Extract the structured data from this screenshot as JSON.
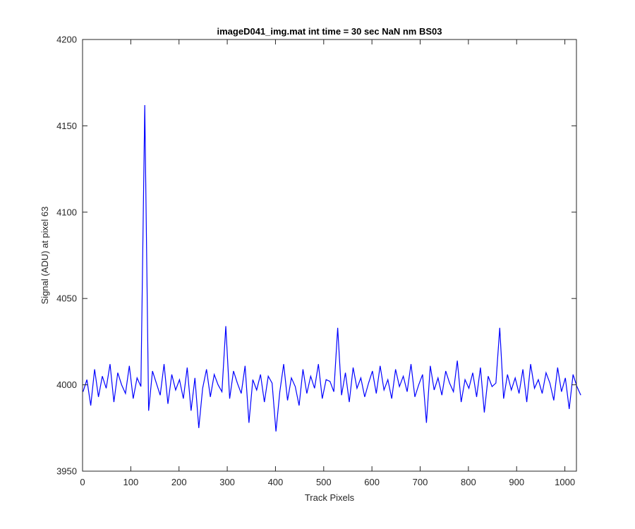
{
  "chart_data": {
    "type": "line",
    "title": "imageD041_img.mat int time = 30 sec  NaN nm BS03",
    "xlabel": "Track Pixels",
    "ylabel": "Signal (ADU) at pixel 63",
    "xlim": [
      0,
      1024
    ],
    "ylim": [
      3950,
      4200
    ],
    "xticks": [
      0,
      100,
      200,
      300,
      400,
      500,
      600,
      700,
      800,
      900,
      1000
    ],
    "yticks": [
      3950,
      4000,
      4050,
      4100,
      4150,
      4200
    ],
    "grid": false,
    "line_color": "#0000ff",
    "series": [
      {
        "x_start": 1,
        "x_step": 8,
        "values": [
          3996,
          4003,
          3988,
          4009,
          3993,
          4005,
          3998,
          4012,
          3990,
          4007,
          4000,
          3995,
          4011,
          3992,
          4004,
          3999,
          4162,
          3985,
          4008,
          4001,
          3994,
          4012,
          3989,
          4006,
          3997,
          4003,
          3992,
          4010,
          3985,
          4004,
          3975,
          3998,
          4009,
          3993,
          4006,
          4000,
          3996,
          4034,
          3992,
          4008,
          4001,
          3995,
          4011,
          3978,
          4003,
          3997,
          4006,
          3990,
          4005,
          4001,
          3973,
          3996,
          4012,
          3991,
          4004,
          3999,
          3988,
          4009,
          3995,
          4005,
          3998,
          4012,
          3992,
          4003,
          4002,
          3996,
          4033,
          3994,
          4007,
          3990,
          4010,
          3998,
          4004,
          3993,
          4001,
          4008,
          3995,
          4011,
          3997,
          4003,
          3992,
          4009,
          3999,
          4005,
          3996,
          4012,
          3993,
          4000,
          4006,
          3978,
          4011,
          3997,
          4004,
          3994,
          4008,
          4001,
          3996,
          4014,
          3990,
          4003,
          3998,
          4007,
          3993,
          4010,
          3984,
          4005,
          3999,
          4001,
          4033,
          3992,
          4006,
          3997,
          4004,
          3995,
          4009,
          3990,
          4012,
          3998,
          4003,
          3995,
          4007,
          4001,
          3991,
          4010,
          3996,
          4004,
          3986,
          4006,
          3999,
          3994
        ]
      }
    ]
  }
}
